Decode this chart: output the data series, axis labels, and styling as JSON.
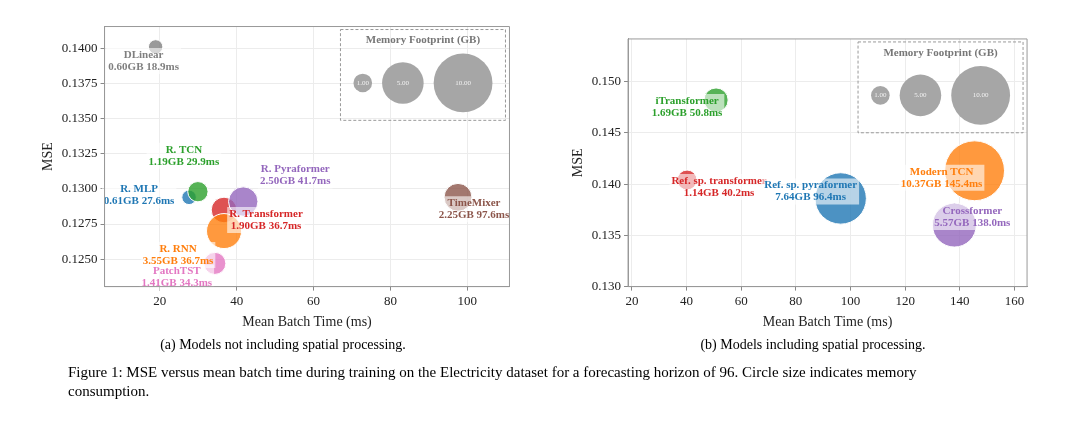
{
  "chart_data": [
    {
      "type": "bubble",
      "xlabel": "Mean Batch Time (ms)",
      "ylabel": "MSE",
      "legend_title": "Memory Footprint (GB)",
      "size_legend": [
        {
          "value": 1,
          "label": "1.00"
        },
        {
          "value": 5,
          "label": "5.00"
        },
        {
          "value": 10,
          "label": "10.00"
        }
      ],
      "xlim": [
        5.6,
        111
      ],
      "ylim": [
        0.12305,
        0.14155
      ],
      "xticks": [
        20,
        40,
        60,
        80,
        100
      ],
      "yticks": [
        {
          "value": 0.125,
          "label": "0.1250"
        },
        {
          "value": 0.1275,
          "label": "0.1275"
        },
        {
          "value": 0.13,
          "label": "0.1300"
        },
        {
          "value": 0.1325,
          "label": "0.1325"
        },
        {
          "value": 0.135,
          "label": "0.1350"
        },
        {
          "value": 0.1375,
          "label": "0.1375"
        },
        {
          "value": 0.14,
          "label": "0.1400"
        }
      ],
      "grid": true,
      "series": [
        {
          "name": "DLinear",
          "color": "#7f7f7f",
          "x": [
            18.9
          ],
          "values": [
            0.1401
          ],
          "sizes": [
            0.6
          ],
          "value_labels": [
            "0.60GB 18.9ms"
          ]
        },
        {
          "name": "R. TCN",
          "color": "#2ca02c",
          "x": [
            29.9
          ],
          "values": [
            0.1298
          ],
          "sizes": [
            1.19
          ],
          "value_labels": [
            "1.19GB 29.9ms"
          ]
        },
        {
          "name": "R. MLP",
          "color": "#1f77b4",
          "x": [
            27.6
          ],
          "values": [
            0.1294
          ],
          "sizes": [
            0.61
          ],
          "value_labels": [
            "0.61GB 27.6ms"
          ]
        },
        {
          "name": "R. Pyraformer",
          "color": "#9467bd",
          "x": [
            41.7
          ],
          "values": [
            0.1291
          ],
          "sizes": [
            2.5
          ],
          "value_labels": [
            "2.50GB 41.7ms"
          ]
        },
        {
          "name": "R. RNN",
          "color": "#ff7f0e",
          "x": [
            36.7
          ],
          "values": [
            0.127
          ],
          "sizes": [
            3.55
          ],
          "value_labels": [
            "3.55GB 36.7ms"
          ]
        },
        {
          "name": "R. Transformer",
          "color": "#d62728",
          "x": [
            36.7
          ],
          "values": [
            0.1285
          ],
          "sizes": [
            1.9
          ],
          "value_labels": [
            "1.90GB 36.7ms"
          ]
        },
        {
          "name": "PatchTST",
          "color": "#e377c2",
          "x": [
            34.3
          ],
          "values": [
            0.1247
          ],
          "sizes": [
            1.41
          ],
          "value_labels": [
            "1.41GB 34.3ms"
          ]
        },
        {
          "name": "TimeMixer",
          "color": "#8c564b",
          "x": [
            97.6
          ],
          "values": [
            0.1294
          ],
          "sizes": [
            2.25
          ],
          "value_labels": [
            "2.25GB 97.6ms"
          ]
        }
      ],
      "annotations": [
        "(a) Models not including spatial processing.",
        "Figure 1: MSE versus mean batch time during training on the Electricity dataset for a forecasting horizon of 96. Circle size indicates memory consumption."
      ]
    },
    {
      "type": "bubble",
      "xlabel": "Mean Batch Time (ms)",
      "ylabel": "MSE",
      "legend_title": "Memory Footprint (GB)",
      "size_legend": [
        {
          "value": 1,
          "label": "1.00"
        },
        {
          "value": 5,
          "label": "5.00"
        },
        {
          "value": 10,
          "label": "10.00"
        }
      ],
      "xlim": [
        18.6,
        164.6
      ],
      "ylim": [
        0.13,
        0.15416
      ],
      "xticks": [
        20,
        40,
        60,
        80,
        100,
        120,
        140,
        160
      ],
      "yticks": [
        {
          "value": 0.13,
          "label": "0.130"
        },
        {
          "value": 0.135,
          "label": "0.135"
        },
        {
          "value": 0.14,
          "label": "0.140"
        },
        {
          "value": 0.145,
          "label": "0.145"
        },
        {
          "value": 0.15,
          "label": "0.150"
        }
      ],
      "grid": true,
      "series": [
        {
          "name": "iTransformer",
          "color": "#2ca02c",
          "x": [
            50.8
          ],
          "values": [
            0.1482
          ],
          "sizes": [
            1.69
          ],
          "value_labels": [
            "1.69GB 50.8ms"
          ]
        },
        {
          "name": "Ref. sp. transformer",
          "color": "#d62728",
          "x": [
            40.2
          ],
          "values": [
            0.1404
          ],
          "sizes": [
            1.14
          ],
          "value_labels": [
            "1.14GB 40.2ms"
          ]
        },
        {
          "name": "Ref. sp. pyraformer",
          "color": "#1f77b4",
          "x": [
            96.4
          ],
          "values": [
            0.1386
          ],
          "sizes": [
            7.64
          ],
          "value_labels": [
            "7.64GB 96.4ms"
          ]
        },
        {
          "name": "Modern TCN",
          "color": "#ff7f0e",
          "x": [
            145.4
          ],
          "values": [
            0.1413
          ],
          "sizes": [
            10.37
          ],
          "value_labels": [
            "10.37GB 145.4ms"
          ]
        },
        {
          "name": "Crossformer",
          "color": "#9467bd",
          "x": [
            138.0
          ],
          "values": [
            0.136
          ],
          "sizes": [
            5.57
          ],
          "value_labels": [
            "5.57GB 138.0ms"
          ]
        }
      ],
      "annotations": [
        "(b) Models including spatial processing."
      ]
    }
  ]
}
